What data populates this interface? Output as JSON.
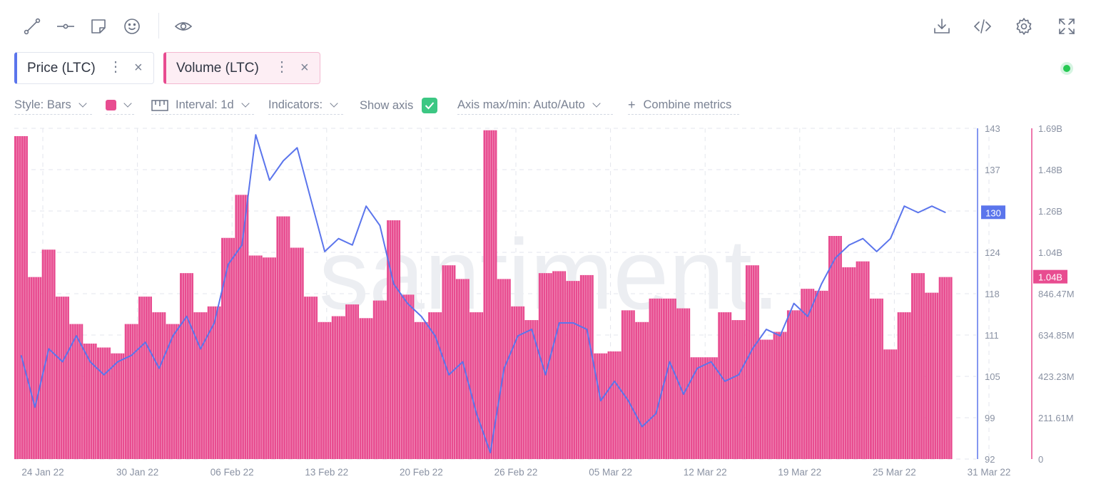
{
  "toolbar": {
    "left_icons": [
      "trend-line-icon",
      "horizontal-line-icon",
      "note-icon",
      "emoji-icon",
      "eye-icon"
    ],
    "right_icons": [
      "download-icon",
      "embed-code-icon",
      "settings-gear-icon",
      "fullscreen-icon"
    ]
  },
  "metrics": [
    {
      "label": "Price (LTC)",
      "color": "#5b75ec"
    },
    {
      "label": "Volume (LTC)",
      "color": "#e84c90"
    }
  ],
  "options": {
    "style": "Style: Bars",
    "interval": "Interval: 1d",
    "indicators": "Indicators:",
    "show_axis": "Show axis",
    "show_axis_checked": true,
    "axis_maxmin": "Axis max/min: Auto/Auto",
    "combine": "Combine metrics",
    "swatch_color": "#e84c90"
  },
  "watermark": "santiment.",
  "chart_data": {
    "type": "bar",
    "x_ticks": [
      "24 Jan 22",
      "30 Jan 22",
      "06 Feb 22",
      "13 Feb 22",
      "20 Feb 22",
      "26 Feb 22",
      "05 Mar 22",
      "12 Mar 22",
      "19 Mar 22",
      "25 Mar 22",
      "31 Mar 22"
    ],
    "price_axis": {
      "ticks": [
        "143",
        "137",
        "130",
        "124",
        "118",
        "111",
        "105",
        "99",
        "92"
      ],
      "min": 92,
      "max": 143,
      "current_label": "130",
      "color": "#5b75ec"
    },
    "volume_axis": {
      "ticks": [
        "1.69B",
        "1.48B",
        "1.26B",
        "1.04B",
        "846.47M",
        "634.85M",
        "423.23M",
        "211.61M",
        "0"
      ],
      "min": 0,
      "max": 1.69,
      "unit": "B",
      "current_label": "1.04B",
      "color": "#e84c90"
    },
    "series": [
      {
        "name": "Volume (LTC)",
        "type": "bar",
        "color": "#e84c90",
        "dates": [
          "22 Jan",
          "23 Jan",
          "24 Jan",
          "25 Jan",
          "26 Jan",
          "27 Jan",
          "28 Jan",
          "29 Jan",
          "30 Jan",
          "31 Jan",
          "01 Feb",
          "02 Feb",
          "03 Feb",
          "04 Feb",
          "05 Feb",
          "06 Feb",
          "07 Feb",
          "08 Feb",
          "09 Feb",
          "10 Feb",
          "11 Feb",
          "12 Feb",
          "13 Feb",
          "14 Feb",
          "15 Feb",
          "16 Feb",
          "17 Feb",
          "18 Feb",
          "19 Feb",
          "20 Feb",
          "21 Feb",
          "22 Feb",
          "23 Feb",
          "24 Feb",
          "25 Feb",
          "26 Feb",
          "27 Feb",
          "28 Feb",
          "01 Mar",
          "02 Mar",
          "03 Mar",
          "04 Mar",
          "05 Mar",
          "06 Mar",
          "07 Mar",
          "08 Mar",
          "09 Mar",
          "10 Mar",
          "11 Mar",
          "12 Mar",
          "13 Mar",
          "14 Mar",
          "15 Mar",
          "16 Mar",
          "17 Mar",
          "18 Mar",
          "19 Mar",
          "20 Mar",
          "21 Mar",
          "22 Mar",
          "23 Mar",
          "24 Mar",
          "25 Mar",
          "26 Mar",
          "27 Mar",
          "28 Mar",
          "29 Mar",
          "30 Mar"
        ],
        "values": [
          1.65,
          0.93,
          1.07,
          0.83,
          0.69,
          0.59,
          0.57,
          0.54,
          0.69,
          0.83,
          0.75,
          0.69,
          0.95,
          0.75,
          0.78,
          1.13,
          1.35,
          1.04,
          1.03,
          1.24,
          1.08,
          0.83,
          0.7,
          0.73,
          0.79,
          0.72,
          0.81,
          1.22,
          0.84,
          0.7,
          0.75,
          0.99,
          0.92,
          0.75,
          1.68,
          0.92,
          0.78,
          0.71,
          0.95,
          0.96,
          0.91,
          0.94,
          0.54,
          0.55,
          0.76,
          0.7,
          0.82,
          0.82,
          0.77,
          0.52,
          0.52,
          0.75,
          0.71,
          0.99,
          0.61,
          0.65,
          0.76,
          0.87,
          0.86,
          1.14,
          0.98,
          1.01,
          0.82,
          0.56,
          0.75,
          0.95,
          0.85,
          0.93
        ]
      },
      {
        "name": "Price (LTC)",
        "type": "line",
        "color": "#5b75ec",
        "values": [
          108,
          100,
          109,
          107,
          111,
          107,
          105,
          107,
          108,
          110,
          106,
          111,
          114,
          109,
          113,
          122,
          125,
          142,
          135,
          138,
          140,
          132,
          124,
          126,
          125,
          131,
          128,
          119,
          116,
          114,
          111,
          105,
          107,
          99,
          93,
          106,
          111,
          112,
          105,
          113,
          113,
          112,
          101,
          104,
          101,
          97,
          99,
          107,
          102,
          106,
          107,
          104,
          105,
          109,
          112,
          111,
          116,
          114,
          119,
          123,
          125,
          126,
          124,
          126,
          131,
          130,
          131,
          130
        ]
      }
    ]
  }
}
